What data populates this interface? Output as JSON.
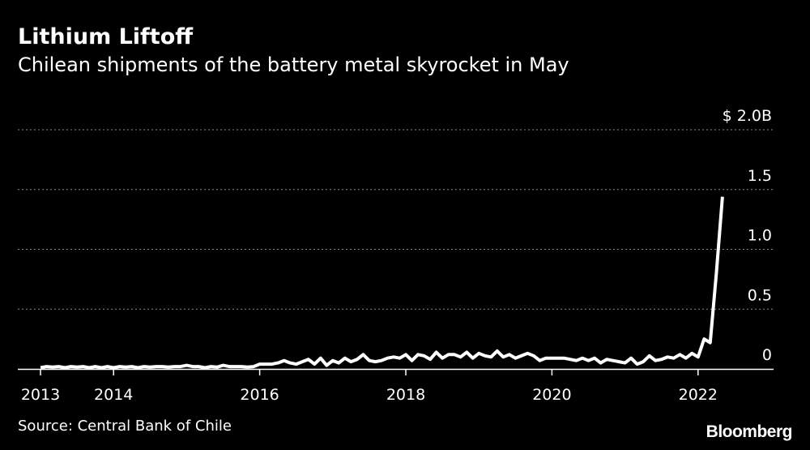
{
  "header": {
    "title": "Lithium Liftoff",
    "subtitle": "Chilean shipments of the battery metal skyrocket in May"
  },
  "footer": {
    "source": "Source: Central Bank of Chile",
    "brand": "Bloomberg"
  },
  "colors": {
    "background": "#000000",
    "line": "#ffffff",
    "grid": "#8a8a8a",
    "text": "#ffffff"
  },
  "chart_data": {
    "type": "line",
    "title": "Lithium Liftoff",
    "subtitle": "Chilean shipments of the battery metal skyrocket in May",
    "unit": "$B",
    "xlim": [
      "2013-01",
      "2022-12"
    ],
    "ylim": [
      0,
      2.0
    ],
    "y_ticks": [
      {
        "value": 0,
        "label": "0"
      },
      {
        "value": 0.5,
        "label": "0.5"
      },
      {
        "value": 1.0,
        "label": "1.0"
      },
      {
        "value": 1.5,
        "label": "1.5"
      },
      {
        "value": 2.0,
        "label": "$ 2.0B"
      }
    ],
    "x_ticks": [
      {
        "value": "2013-01",
        "label": "2013"
      },
      {
        "value": "2014-01",
        "label": "2014"
      },
      {
        "value": "2016-01",
        "label": "2016"
      },
      {
        "value": "2018-01",
        "label": "2018"
      },
      {
        "value": "2020-01",
        "label": "2020"
      },
      {
        "value": "2022-01",
        "label": "2022"
      }
    ],
    "grid": true,
    "y_axis_side": "right",
    "series": [
      {
        "x": [
          "2013-01",
          "2013-02",
          "2013-03",
          "2013-04",
          "2013-05",
          "2013-06",
          "2013-07",
          "2013-08",
          "2013-09",
          "2013-10",
          "2013-11",
          "2013-12",
          "2014-01",
          "2014-02",
          "2014-03",
          "2014-04",
          "2014-05",
          "2014-06",
          "2014-07",
          "2014-08",
          "2014-09",
          "2014-10",
          "2014-11",
          "2014-12",
          "2015-01",
          "2015-02",
          "2015-03",
          "2015-04",
          "2015-05",
          "2015-06",
          "2015-07",
          "2015-08",
          "2015-09",
          "2015-10",
          "2015-11",
          "2015-12",
          "2016-01",
          "2016-02",
          "2016-03",
          "2016-04",
          "2016-05",
          "2016-06",
          "2016-07",
          "2016-08",
          "2016-09",
          "2016-10",
          "2016-11",
          "2016-12",
          "2017-01",
          "2017-02",
          "2017-03",
          "2017-04",
          "2017-05",
          "2017-06",
          "2017-07",
          "2017-08",
          "2017-09",
          "2017-10",
          "2017-11",
          "2017-12",
          "2018-01",
          "2018-02",
          "2018-03",
          "2018-04",
          "2018-05",
          "2018-06",
          "2018-07",
          "2018-08",
          "2018-09",
          "2018-10",
          "2018-11",
          "2018-12",
          "2019-01",
          "2019-02",
          "2019-03",
          "2019-04",
          "2019-05",
          "2019-06",
          "2019-07",
          "2019-08",
          "2019-09",
          "2019-10",
          "2019-11",
          "2019-12",
          "2020-01",
          "2020-02",
          "2020-03",
          "2020-04",
          "2020-05",
          "2020-06",
          "2020-07",
          "2020-08",
          "2020-09",
          "2020-10",
          "2020-11",
          "2020-12",
          "2021-01",
          "2021-02",
          "2021-03",
          "2021-04",
          "2021-05",
          "2021-06",
          "2021-07",
          "2021-08",
          "2021-09",
          "2021-10",
          "2021-11",
          "2021-12",
          "2022-01",
          "2022-02",
          "2022-03",
          "2022-04",
          "2022-05"
        ],
        "values": [
          0.01,
          0.02,
          0.015,
          0.02,
          0.01,
          0.02,
          0.015,
          0.02,
          0.01,
          0.02,
          0.01,
          0.02,
          0.01,
          0.02,
          0.015,
          0.02,
          0.01,
          0.02,
          0.015,
          0.02,
          0.02,
          0.015,
          0.02,
          0.02,
          0.03,
          0.02,
          0.02,
          0.01,
          0.02,
          0.015,
          0.03,
          0.02,
          0.02,
          0.02,
          0.015,
          0.02,
          0.04,
          0.04,
          0.04,
          0.05,
          0.07,
          0.05,
          0.04,
          0.06,
          0.08,
          0.04,
          0.09,
          0.03,
          0.07,
          0.05,
          0.09,
          0.06,
          0.08,
          0.12,
          0.07,
          0.06,
          0.07,
          0.09,
          0.1,
          0.09,
          0.12,
          0.07,
          0.12,
          0.11,
          0.08,
          0.14,
          0.09,
          0.12,
          0.12,
          0.1,
          0.14,
          0.09,
          0.13,
          0.11,
          0.1,
          0.15,
          0.1,
          0.12,
          0.09,
          0.11,
          0.13,
          0.11,
          0.07,
          0.09,
          0.09,
          0.09,
          0.09,
          0.08,
          0.07,
          0.09,
          0.07,
          0.09,
          0.05,
          0.08,
          0.07,
          0.06,
          0.05,
          0.09,
          0.04,
          0.06,
          0.11,
          0.07,
          0.08,
          0.1,
          0.09,
          0.12,
          0.09,
          0.13,
          0.1,
          0.25,
          0.22,
          0.8,
          1.44
        ]
      }
    ]
  }
}
